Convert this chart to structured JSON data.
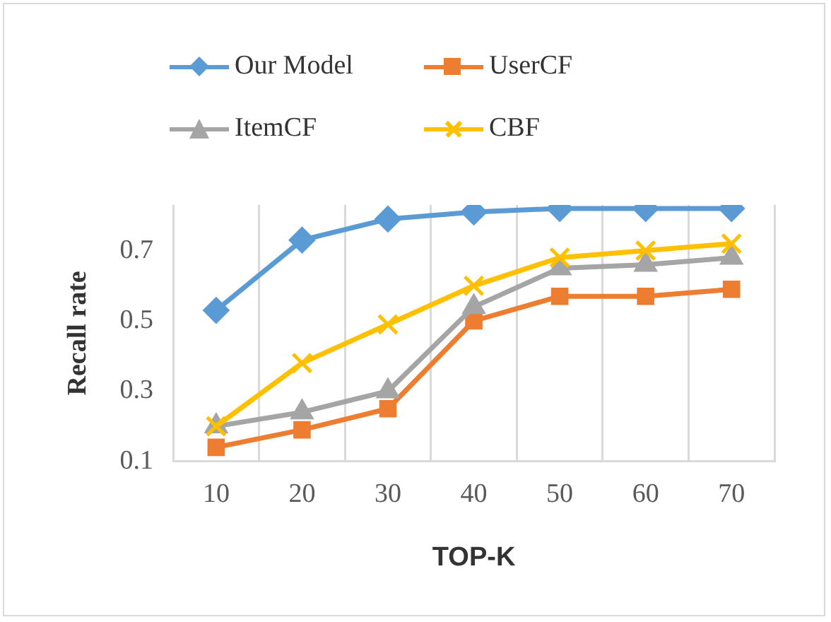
{
  "chart_data": {
    "type": "line",
    "xlabel": "TOP-K",
    "ylabel": "Recall rate",
    "categories": [
      "10",
      "20",
      "30",
      "40",
      "50",
      "60",
      "70"
    ],
    "series": [
      {
        "name": "Our Model",
        "color": "#5b9bd5",
        "marker": "diamond",
        "values": [
          0.53,
          0.73,
          0.79,
          0.81,
          0.82,
          0.82,
          0.82
        ]
      },
      {
        "name": "UserCF",
        "color": "#ed7d31",
        "marker": "square",
        "values": [
          0.14,
          0.19,
          0.25,
          0.5,
          0.57,
          0.57,
          0.59
        ]
      },
      {
        "name": "ItemCF",
        "color": "#a5a5a5",
        "marker": "triangle",
        "values": [
          0.2,
          0.24,
          0.3,
          0.54,
          0.65,
          0.66,
          0.68
        ]
      },
      {
        "name": "CBF",
        "color": "#ffc000",
        "marker": "cross",
        "values": [
          0.2,
          0.38,
          0.49,
          0.6,
          0.68,
          0.7,
          0.72
        ]
      }
    ],
    "ylim": [
      0.1,
      0.83
    ],
    "yticks": [
      0.1,
      0.3,
      0.5,
      0.7
    ],
    "grid": "x",
    "legend": "top"
  }
}
